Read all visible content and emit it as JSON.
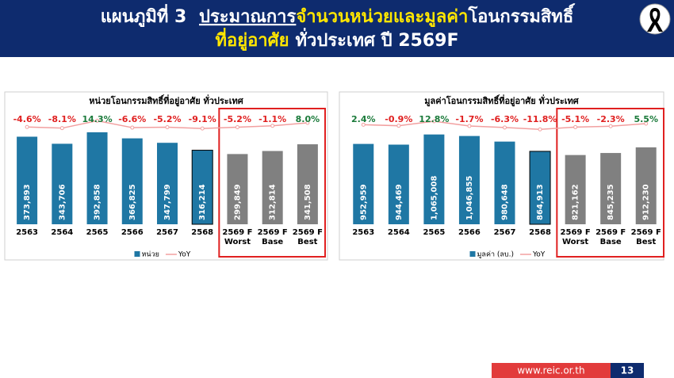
{
  "header": {
    "title": [
      {
        "text": "แผนภูมิที่ 3",
        "color": "#ffffff"
      },
      {
        "text": "ประมาณการ",
        "color": "#ffffff"
      },
      {
        "text": "จำนวนหน่วยและมูลค่า",
        "color": "#ffe600"
      },
      {
        "text": "โอนกรรมสิทธิ์",
        "color": "#ffffff"
      },
      {
        "text": "ที่อยู่อาศัย",
        "color": "#ffe600"
      },
      {
        "text": "ทั่วประเทศ ปี 2569F",
        "color": "#ffffff"
      }
    ]
  },
  "chart_data": [
    {
      "type": "bar",
      "title": "หน่วยโอนกรรมสิทธิ์ที่อยู่อาศัย ทั่วประเทศ",
      "categories": [
        "2563",
        "2564",
        "2565",
        "2566",
        "2567",
        "2568",
        "2569 F Worst",
        "2569 F Base",
        "2569 F Best"
      ],
      "series": [
        {
          "name": "หน่วย",
          "color": "#1f77a4",
          "colors": [
            "#1f77a4",
            "#1f77a4",
            "#1f77a4",
            "#1f77a4",
            "#1f77a4",
            "#1f77a4",
            "#808080",
            "#808080",
            "#808080"
          ],
          "values": [
            373893,
            343706,
            392858,
            366825,
            347799,
            316214,
            299849,
            312814,
            341508
          ],
          "value_labels": [
            "373,893",
            "343,706",
            "392,858",
            "366,825",
            "347,799",
            "316,214",
            "299,849",
            "312,814",
            "341,508"
          ]
        },
        {
          "name": "YoY",
          "type": "line",
          "axis": "y2",
          "color": "#f2a0a0",
          "values": [
            -4.6,
            -8.1,
            14.3,
            -6.6,
            -5.2,
            -9.1,
            -5.2,
            -1.1,
            8.0
          ],
          "value_labels": [
            "-4.6%",
            "-8.1%",
            "14.3%",
            "-6.6%",
            "-5.2%",
            "-9.1%",
            "-5.2%",
            "-1.1%",
            "8.0%"
          ]
        }
      ],
      "ylim": [
        0,
        450000
      ],
      "y2lim": [
        -300,
        20
      ]
    },
    {
      "type": "bar",
      "title": "มูลค่าโอนกรรมสิทธิ์ที่อยู่อาศัย ทั่วประเทศ",
      "categories": [
        "2563",
        "2564",
        "2565",
        "2566",
        "2567",
        "2568",
        "2569 F Worst",
        "2569 F Base",
        "2569 F Best"
      ],
      "series": [
        {
          "name": "มูลค่า (ลบ.)",
          "color": "#1f77a4",
          "colors": [
            "#1f77a4",
            "#1f77a4",
            "#1f77a4",
            "#1f77a4",
            "#1f77a4",
            "#1f77a4",
            "#808080",
            "#808080",
            "#808080"
          ],
          "values": [
            952959,
            944469,
            1065008,
            1046855,
            980648,
            864913,
            821162,
            845235,
            912230
          ],
          "value_labels": [
            "952,959",
            "944,469",
            "1,065,008",
            "1,046,855",
            "980,648",
            "864,913",
            "821,162",
            "845,235",
            "912,230"
          ]
        },
        {
          "name": "YoY",
          "type": "line",
          "axis": "y2",
          "color": "#f2a0a0",
          "values": [
            2.4,
            -0.9,
            12.8,
            -1.7,
            -6.3,
            -11.8,
            -5.1,
            -2.3,
            5.5
          ],
          "value_labels": [
            "2.4%",
            "-0.9%",
            "12.8%",
            "-1.7%",
            "-6.3%",
            "-11.8%",
            "-5.1%",
            "-2.3%",
            "5.5%"
          ]
        }
      ],
      "ylim": [
        0,
        1250000
      ],
      "y2lim": [
        -300,
        20
      ]
    }
  ],
  "footer": {
    "url": "www.reic.or.th",
    "page": 13
  }
}
